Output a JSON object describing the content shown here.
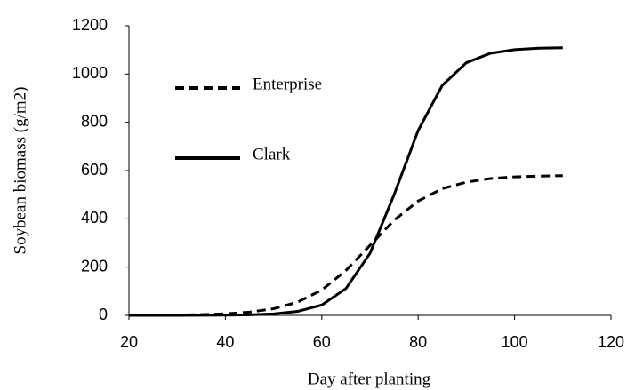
{
  "chart_data": {
    "type": "line",
    "x_label": "Day after planting",
    "y_label": "Soybean biomass (g/m2)",
    "x": [
      20,
      25,
      30,
      35,
      40,
      45,
      50,
      55,
      60,
      65,
      70,
      75,
      80,
      85,
      90,
      95,
      100,
      105,
      110
    ],
    "series": [
      {
        "name": "Enterprise",
        "color": "#000000",
        "line_style": "dashed",
        "values": [
          0.3,
          0.7,
          1.4,
          3,
          6.4,
          13.3,
          27.5,
          55,
          105,
          186,
          290,
          394,
          474,
          525,
          552,
          567,
          574,
          577,
          579
        ]
      },
      {
        "name": "Clark",
        "color": "#000000",
        "line_style": "solid",
        "values": [
          0,
          0,
          0.1,
          0.3,
          0.8,
          2.2,
          6.1,
          16.4,
          43,
          111,
          257,
          500,
          766,
          953,
          1047,
          1086,
          1101,
          1107,
          1109
        ]
      }
    ],
    "xlim": [
      20,
      120
    ],
    "xticks": [
      20,
      40,
      60,
      80,
      100,
      120
    ],
    "ylim": [
      0,
      1200
    ],
    "yticks": [
      0,
      200,
      400,
      600,
      800,
      1000,
      1200
    ],
    "grid": false,
    "legend": "upper left"
  }
}
